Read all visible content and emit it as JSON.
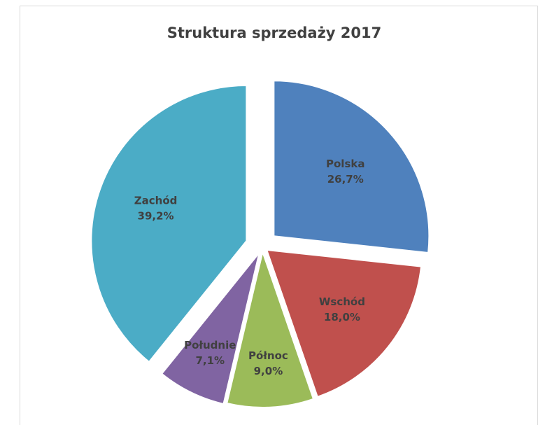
{
  "chart_data": {
    "type": "pie",
    "title": "Struktura sprzedaży 2017",
    "categories": [
      "Polska",
      "Wschód",
      "Północ",
      "Południe",
      "Zachód"
    ],
    "values": [
      26.7,
      18.0,
      9.0,
      7.1,
      39.2
    ],
    "value_labels": [
      "26,7%",
      "18,0%",
      "9,0%",
      "7,1%",
      "39,2%"
    ],
    "colors": [
      "#4f81bd",
      "#c0504d",
      "#9bbb59",
      "#8064a2",
      "#4bacc6"
    ]
  }
}
